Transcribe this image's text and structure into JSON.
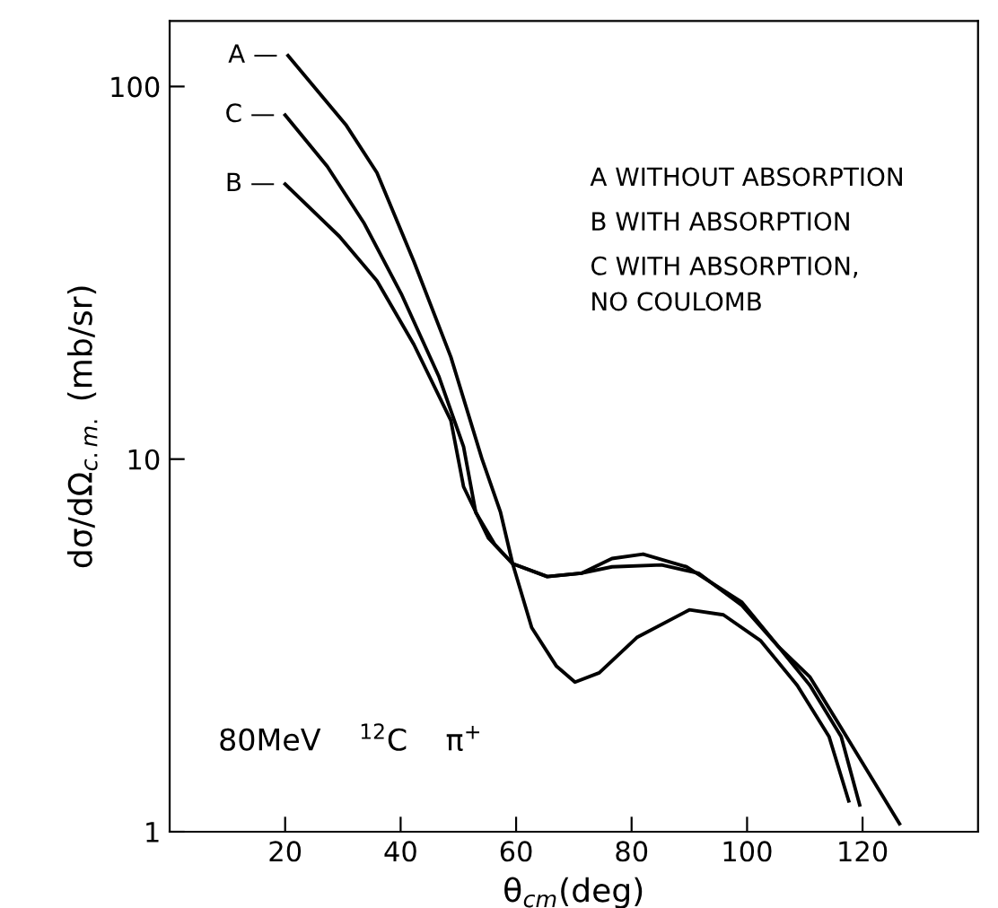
{
  "chart_data": {
    "type": "line",
    "xlabel": "θ$_{cm}$(deg)",
    "ylabel": "dσ/dΩ$_{c.m.}$ (mb/sr)",
    "log": "y",
    "xlim": [
      0,
      140
    ],
    "ylim": [
      1,
      150
    ],
    "xticks": [
      20,
      40,
      60,
      80,
      100,
      120
    ],
    "yticks": [
      1,
      10,
      100
    ],
    "grid": false,
    "marker": "none",
    "line_style": "solid",
    "series": [
      {
        "name": "A —",
        "color": "#000000",
        "x": [
          20.5,
          30.5,
          35.9,
          42.3,
          48.7,
          54.1,
          57.3,
          59.4,
          62.7,
          67,
          70.2,
          74.4,
          80.9,
          90,
          95.9,
          102.3,
          108.7,
          114.2,
          117.6
        ],
        "values": [
          121,
          79,
          58.7,
          33.9,
          18.8,
          10,
          7.2,
          5.24,
          3.53,
          2.78,
          2.52,
          2.67,
          3.32,
          3.94,
          3.82,
          3.26,
          2.47,
          1.8,
          1.21
        ]
      },
      {
        "name": "B —",
        "color": "#000000",
        "x": [
          20,
          29.4,
          35.9,
          42.3,
          48.7,
          50.9,
          55.2,
          59.4,
          65.4,
          71.3,
          76.6,
          85.2,
          91.6,
          99.1,
          105.5,
          110.9,
          116.3,
          119.5
        ],
        "values": [
          54.7,
          39.6,
          30.1,
          20.3,
          12.7,
          8.43,
          6.14,
          5.24,
          4.84,
          4.94,
          5.14,
          5.2,
          4.94,
          4.05,
          3.13,
          2.47,
          1.8,
          1.18
        ]
      },
      {
        "name": "C —",
        "color": "#000000",
        "x": [
          20,
          27.3,
          33.7,
          40.1,
          46.6,
          50.9,
          53,
          56.3,
          59.4,
          65.4,
          71.3,
          76.6,
          82,
          89.5,
          99.1,
          105.5,
          110.9,
          116.3,
          126.4
        ],
        "values": [
          83.8,
          61,
          42.9,
          27.8,
          16.7,
          10.8,
          7.2,
          5.9,
          5.24,
          4.84,
          4.94,
          5.41,
          5.56,
          5.14,
          4.13,
          3.13,
          2.6,
          1.9,
          1.05
        ]
      }
    ],
    "annotations": [
      "A WITHOUT ABSORPTION",
      "B WITH ABSORPTION",
      "C WITH ABSORPTION,\nNO COULOMB",
      "80MeV    $^{12}$C    π$^{+}$"
    ]
  }
}
